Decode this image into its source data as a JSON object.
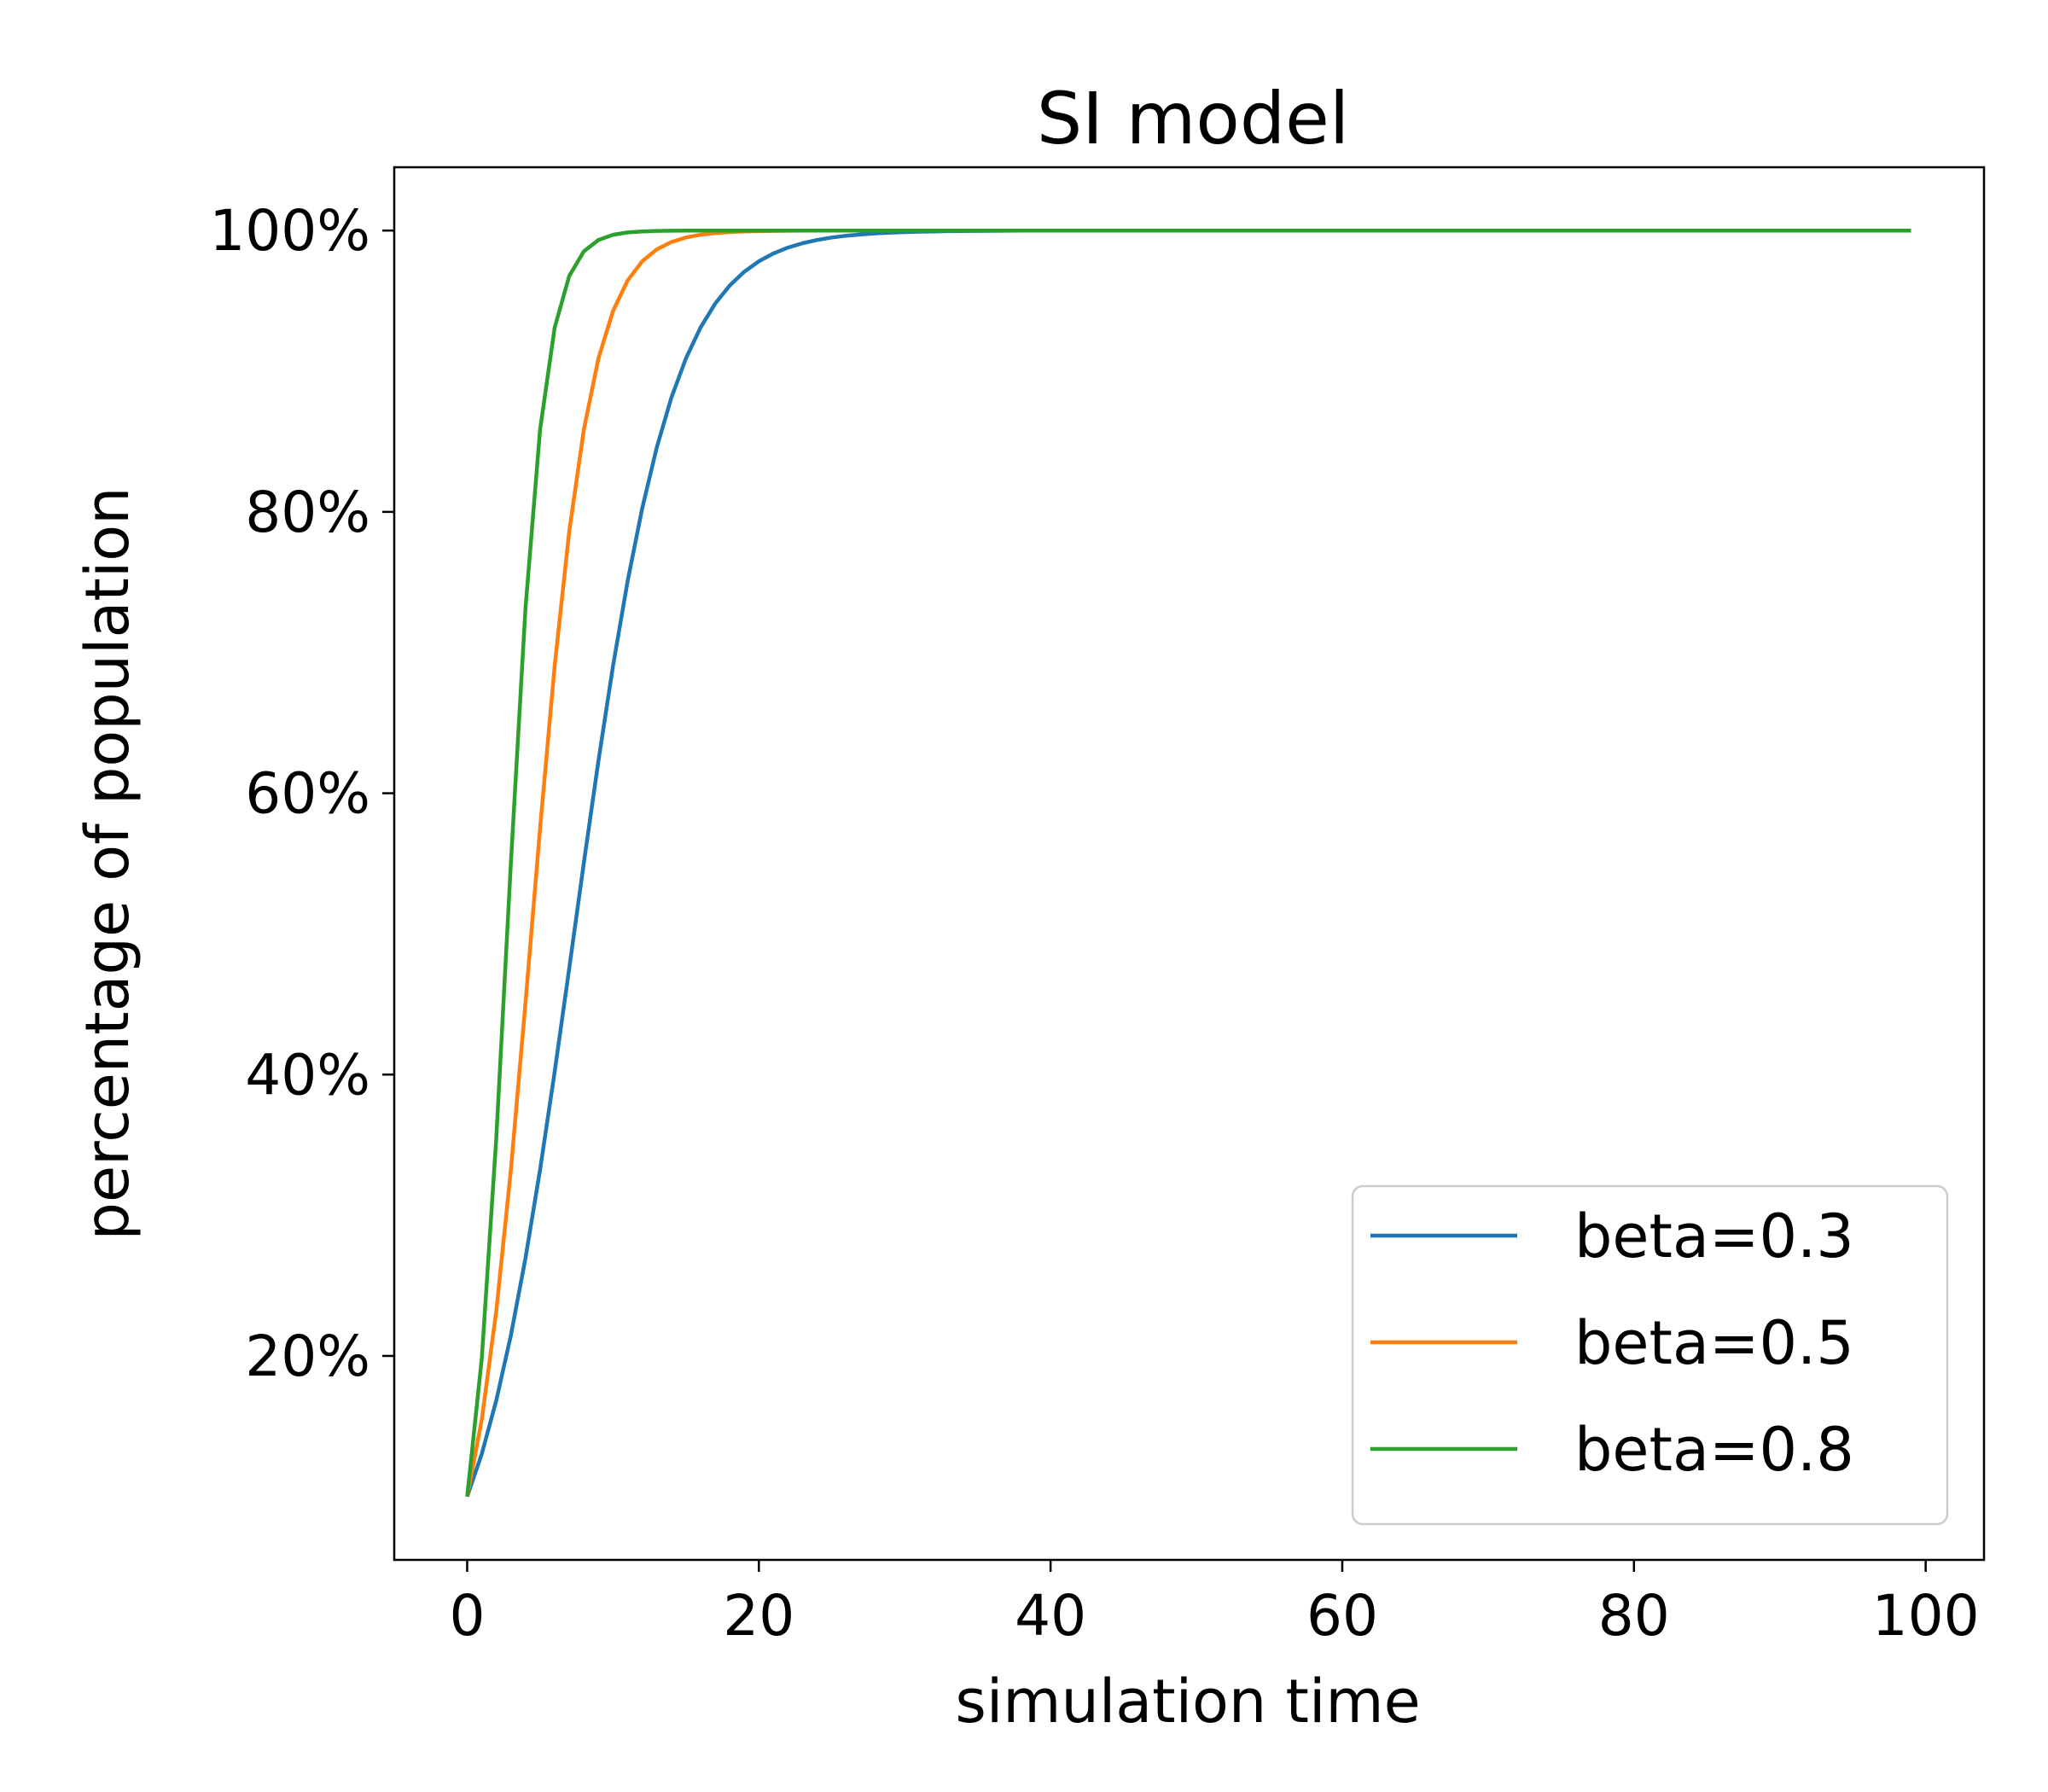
{
  "chart_data": {
    "type": "line",
    "title": "SI model",
    "xlabel": "simulation time",
    "ylabel": "percentage of population",
    "xlim": [
      -5,
      104
    ],
    "ylim": [
      0.055,
      1.045
    ],
    "xticks": [
      0,
      20,
      40,
      60,
      80,
      100
    ],
    "xtick_labels": [
      "0",
      "20",
      "40",
      "60",
      "80",
      "100"
    ],
    "yticks": [
      0.2,
      0.4,
      0.6,
      0.8,
      1.0
    ],
    "ytick_labels": [
      "20%",
      "40%",
      "60%",
      "80%",
      "100%"
    ],
    "grid": false,
    "legend_position": "lower-right",
    "model": {
      "initial_fraction": 0.1,
      "t_start": 0,
      "t_end": 99,
      "step": 1
    },
    "series": [
      {
        "name": "beta=0.3",
        "beta": 0.3,
        "color": "#1f77b4"
      },
      {
        "name": "beta=0.5",
        "beta": 0.5,
        "color": "#ff7f0e"
      },
      {
        "name": "beta=0.8",
        "beta": 0.8,
        "color": "#2ca02c"
      }
    ]
  }
}
